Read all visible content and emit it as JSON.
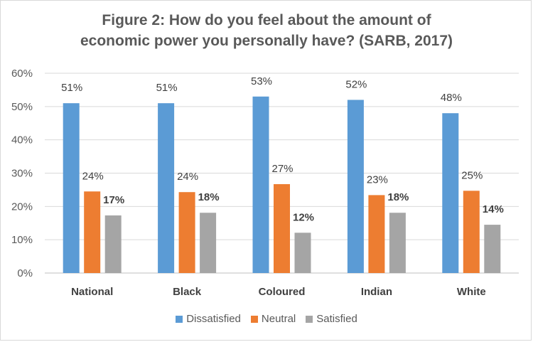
{
  "chart_data": {
    "type": "bar",
    "title_lines": [
      "Figure 2: How do you feel about the amount of",
      "economic power you personally have? (SARB, 2017)"
    ],
    "categories": [
      "National",
      "Black",
      "Coloured",
      "Indian",
      "White"
    ],
    "series": [
      {
        "name": "Dissatisfied",
        "color": "#5B9BD5",
        "values": [
          51,
          51,
          53,
          52,
          48
        ],
        "labels": [
          "51%",
          "51%",
          "53%",
          "52%",
          "48%"
        ],
        "label_bold": false
      },
      {
        "name": "Neutral",
        "color": "#ED7D31",
        "values": [
          24.5,
          24.3,
          26.7,
          23.4,
          24.7
        ],
        "labels": [
          "24%",
          "24%",
          "27%",
          "23%",
          "25%"
        ],
        "label_bold": false
      },
      {
        "name": "Satisfied",
        "color": "#A5A5A5",
        "values": [
          17.3,
          18.1,
          12.1,
          18.1,
          14.5
        ],
        "labels": [
          "17%",
          "18%",
          "12%",
          "18%",
          "14%"
        ],
        "label_bold": true
      }
    ],
    "ylim": [
      0,
      60
    ],
    "yticks": [
      0,
      10,
      20,
      30,
      40,
      50,
      60
    ],
    "ytick_labels": [
      "0%",
      "10%",
      "20%",
      "30%",
      "40%",
      "50%",
      "60%"
    ],
    "grid": true,
    "legend_position": "bottom"
  }
}
